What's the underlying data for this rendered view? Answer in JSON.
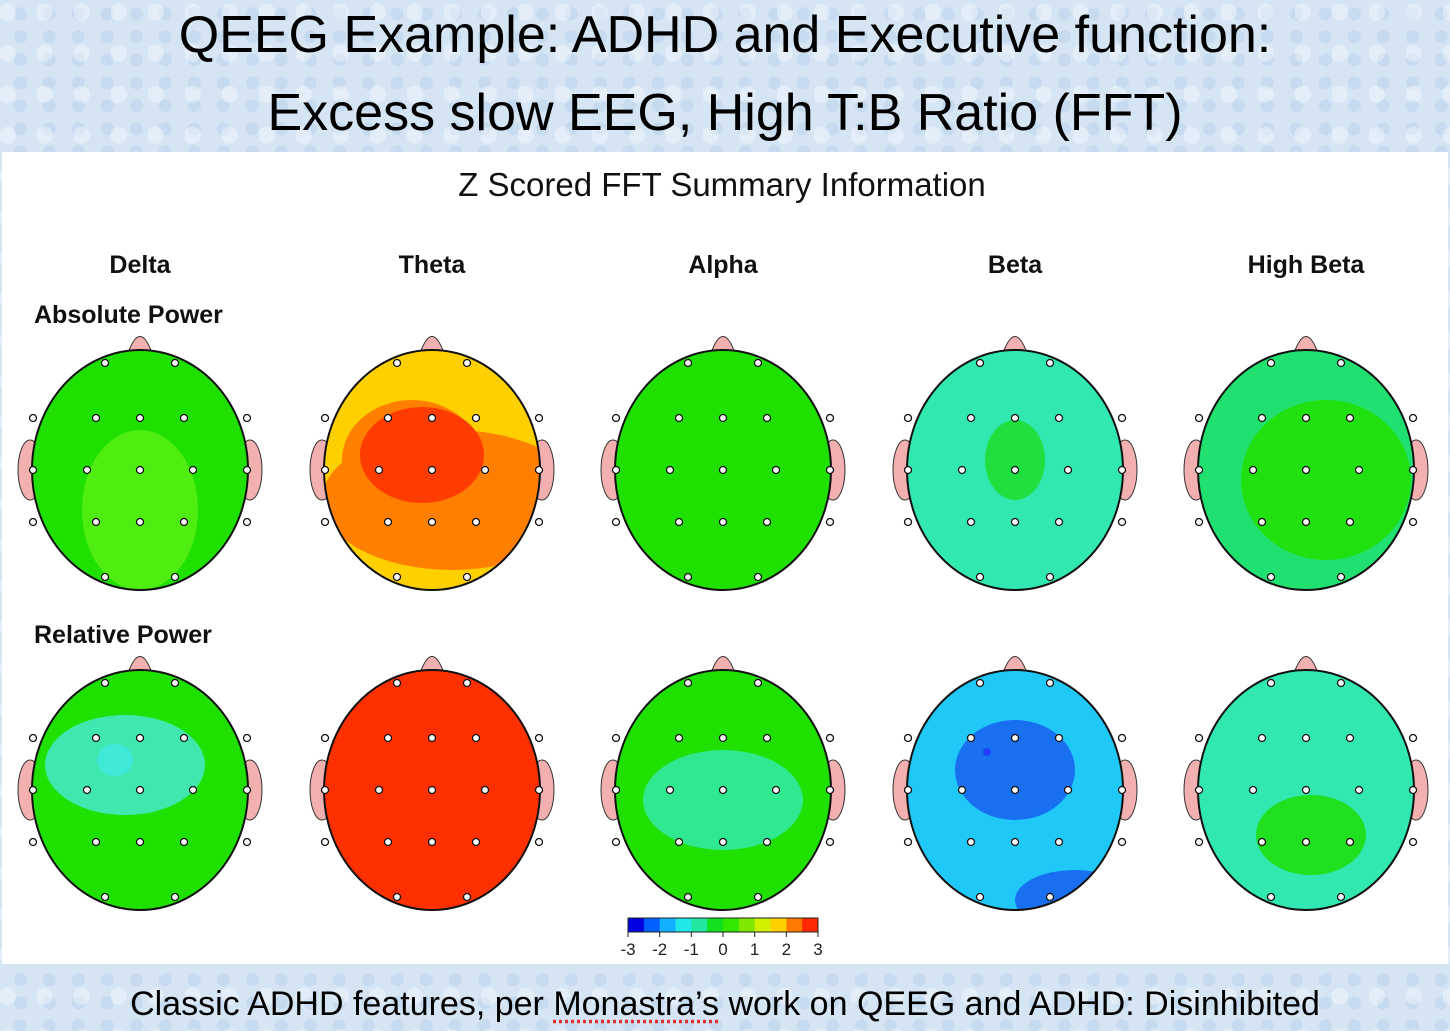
{
  "slide": {
    "title_line1": "QEEG Example: ADHD and Executive function:",
    "title_line2": "Excess slow EEG, High T:B Ratio (FFT)",
    "footer_pre": "Classic ADHD features, per ",
    "footer_misspelled": "Monastra’s",
    "footer_post": " work on QEEG and ADHD: Disinhibited"
  },
  "figure": {
    "title": "Z Scored FFT Summary Information",
    "bands": [
      "Delta",
      "Theta",
      "Alpha",
      "Beta",
      "High Beta"
    ],
    "rows": [
      "Absolute Power",
      "Relative Power"
    ],
    "colorbar": {
      "ticks": [
        "-3",
        "-2",
        "-1",
        "0",
        "1",
        "2",
        "3"
      ],
      "colors": [
        "#0000e0",
        "#0060ff",
        "#10b0ff",
        "#20e8e8",
        "#20e8a0",
        "#10e020",
        "#30e800",
        "#80e800",
        "#d0f000",
        "#ffd000",
        "#ff7800",
        "#ff2800"
      ]
    },
    "maps": [
      [
        {
          "base": "#20e000",
          "blob": "#50ee10"
        },
        {
          "base": "#ffd000",
          "blob": "#ff8000",
          "core": "#ff3c00"
        },
        {
          "base": "#20e000",
          "blob": "#30e410"
        },
        {
          "base": "#30e8b0",
          "blob": "#20e040"
        },
        {
          "base": "#20e070",
          "blob": "#20e010"
        }
      ],
      [
        {
          "base": "#20e000",
          "blob": "#40e8b0",
          "core": "#40e8d8"
        },
        {
          "base": "#ff7000",
          "blob": "#ff3000"
        },
        {
          "base": "#20e000",
          "blob": "#30e890"
        },
        {
          "base": "#20c8f8",
          "blob": "#1870f0",
          "core": "#2040ff"
        },
        {
          "base": "#30e8b0",
          "blob": "#20e020"
        }
      ]
    ]
  }
}
